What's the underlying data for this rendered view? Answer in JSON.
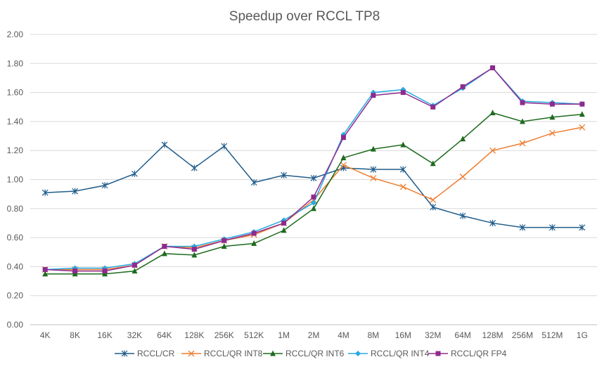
{
  "chart_data": {
    "type": "line",
    "title": "Speedup over RCCL TP8",
    "xlabel": "",
    "ylabel": "",
    "categories": [
      "4K",
      "8K",
      "16K",
      "32K",
      "64K",
      "128K",
      "256K",
      "512K",
      "1M",
      "2M",
      "4M",
      "8M",
      "16M",
      "32M",
      "64M",
      "128M",
      "256M",
      "512M",
      "1G"
    ],
    "ylim": [
      0,
      2
    ],
    "yticks": [
      "0.00",
      "0.20",
      "0.40",
      "0.60",
      "0.80",
      "1.00",
      "1.20",
      "1.40",
      "1.60",
      "1.80",
      "2.00"
    ],
    "grid": true,
    "legend_position": "bottom",
    "series": [
      {
        "name": "RCCL/CR",
        "color": "#1F5C8B",
        "marker": "star",
        "values": [
          0.91,
          0.92,
          0.96,
          1.04,
          1.24,
          1.08,
          1.23,
          0.98,
          1.03,
          1.01,
          1.08,
          1.07,
          1.07,
          0.81,
          0.75,
          0.7,
          0.67,
          0.67,
          0.67
        ]
      },
      {
        "name": "RCCL/QR INT8",
        "color": "#ED7D31",
        "marker": "x",
        "values": [
          0.38,
          0.38,
          0.38,
          0.41,
          0.54,
          0.53,
          0.58,
          0.62,
          0.7,
          0.86,
          1.1,
          1.01,
          0.95,
          0.86,
          1.02,
          1.2,
          1.25,
          1.32,
          1.36
        ]
      },
      {
        "name": "RCCL/QR INT6",
        "color": "#1E6B1E",
        "marker": "triangle",
        "values": [
          0.35,
          0.35,
          0.35,
          0.37,
          0.49,
          0.48,
          0.54,
          0.56,
          0.65,
          0.8,
          1.15,
          1.21,
          1.24,
          1.11,
          1.28,
          1.46,
          1.4,
          1.43,
          1.45
        ]
      },
      {
        "name": "RCCL/QR INT4",
        "color": "#27A9E1",
        "marker": "diamond",
        "values": [
          0.38,
          0.39,
          0.39,
          0.42,
          0.54,
          0.54,
          0.59,
          0.64,
          0.72,
          0.84,
          1.31,
          1.6,
          1.62,
          1.51,
          1.63,
          1.77,
          1.54,
          1.53,
          1.52
        ]
      },
      {
        "name": "RCCL/QR FP4",
        "color": "#8E2B8E",
        "marker": "square",
        "values": [
          0.38,
          0.37,
          0.37,
          0.41,
          0.54,
          0.52,
          0.58,
          0.63,
          0.7,
          0.88,
          1.29,
          1.58,
          1.6,
          1.5,
          1.64,
          1.77,
          1.53,
          1.52,
          1.52
        ]
      }
    ]
  }
}
